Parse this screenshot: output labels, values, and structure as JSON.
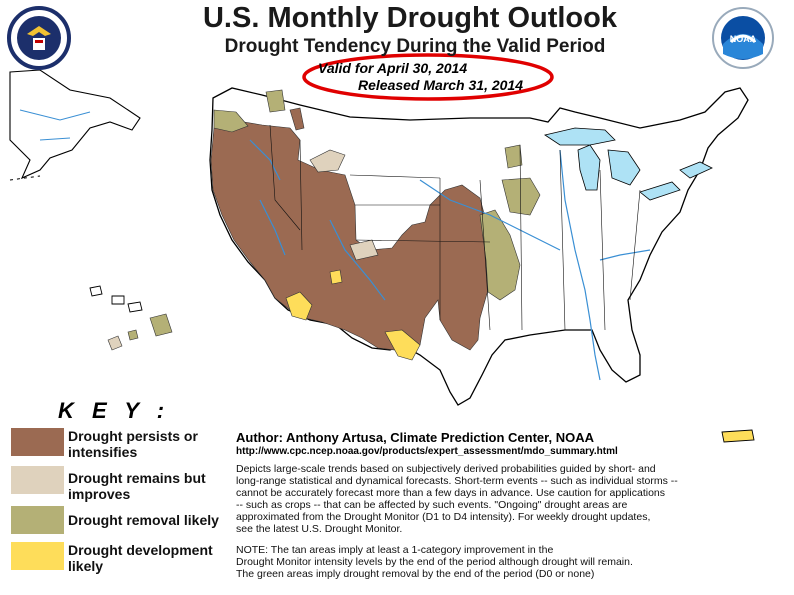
{
  "header": {
    "title": "U.S. Monthly Drought Outlook",
    "subtitle": "Drought Tendency During the Valid Period",
    "valid": "Valid for April 30, 2014",
    "released": "Released March 31, 2014"
  },
  "logos": {
    "left": "dept-of-commerce-seal",
    "right": "noaa-logo"
  },
  "colors": {
    "persists": "#9b6a52",
    "improves": "#dfd2bd",
    "removal": "#b4b076",
    "development": "#fedd5a",
    "water": "#aee2f5",
    "highlight_ring": "#e00000"
  },
  "key": {
    "title": "K E Y :",
    "items": [
      {
        "label_1": "Drought persists or",
        "label_2": "intensifies",
        "color": "#9b6a52"
      },
      {
        "label_1": "Drought remains but",
        "label_2": "improves",
        "color": "#dfd2bd"
      },
      {
        "label_1": "Drought removal likely",
        "label_2": "",
        "color": "#b4b076"
      },
      {
        "label_1": "Drought development",
        "label_2": "likely",
        "color": "#fedd5a"
      }
    ]
  },
  "info": {
    "author": "Author: Anthony Artusa, Climate Prediction Center, NOAA",
    "url": "http://www.cpc.ncep.noaa.gov/products/expert_assessment/mdo_summary.html",
    "desc_lines": [
      "Depicts large-scale trends based on subjectively derived probabilities guided by short- and",
      "long-range statistical and dynamical forecasts. Short-term events -- such as individual storms --",
      "cannot be accurately forecast more than a few days in advance. Use caution for applications",
      "-- such as crops -- that can be affected by such events. \"Ongoing\" drought areas are",
      "approximated from the Drought Monitor (D1 to D4 intensity). For weekly drought updates,",
      "see the latest U.S. Drought Monitor."
    ],
    "note_lines": [
      "NOTE: The tan areas imply at least a 1-category improvement in the",
      "Drought Monitor intensity levels by the end of the period although drought will remain.",
      "The green areas imply drought removal by the end of the period (D0 or none)"
    ]
  }
}
